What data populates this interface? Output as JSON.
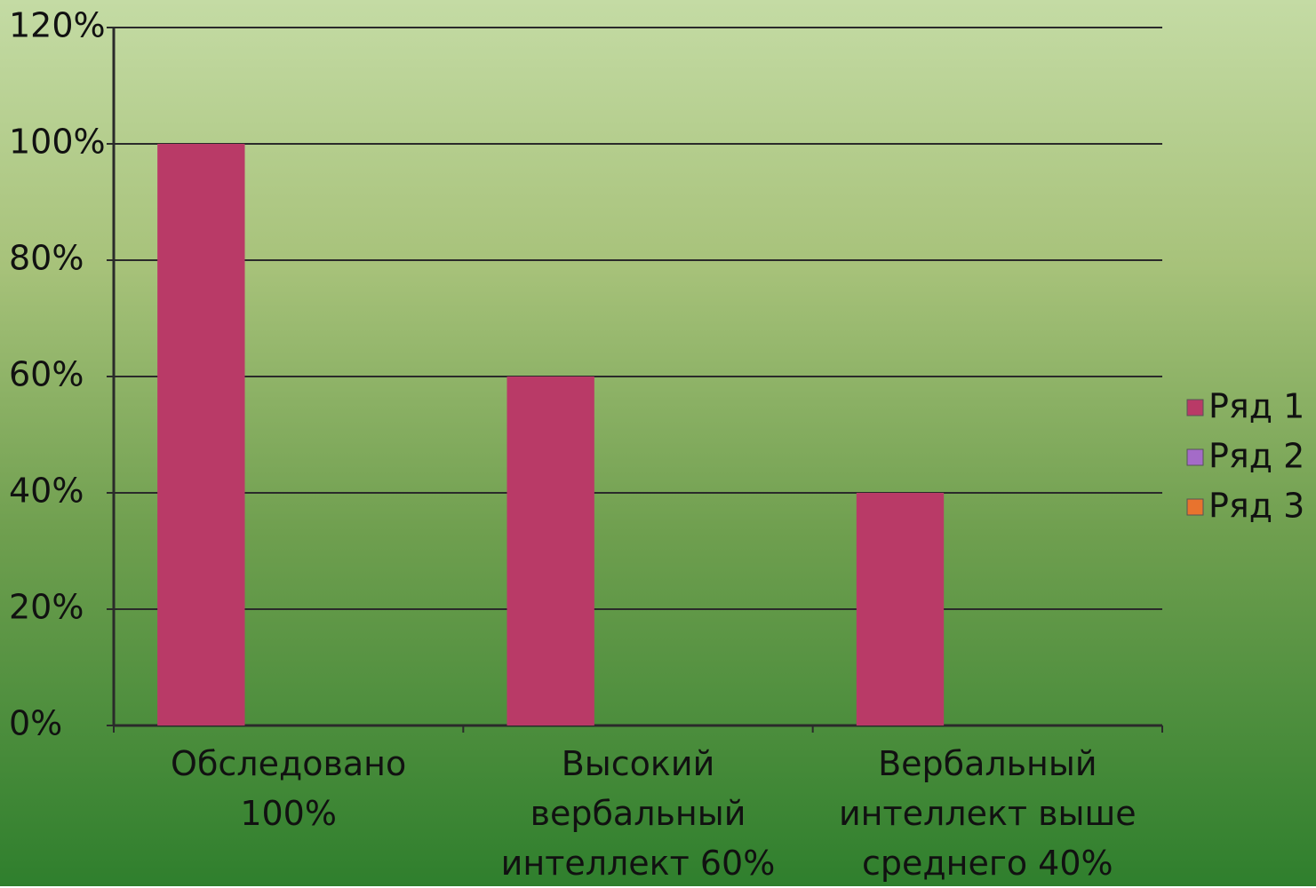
{
  "chart_data": {
    "type": "bar",
    "categories": [
      "Обследовано 100%",
      "Высокий вербальный интеллект 60%",
      "Вербальный интеллект выше среднего 40%"
    ],
    "series": [
      {
        "name": "Ряд 1",
        "color": "#b93a67",
        "values": [
          100,
          60,
          40
        ]
      },
      {
        "name": "Ряд 2",
        "color": "#a46bc8",
        "values": [
          null,
          null,
          null
        ]
      },
      {
        "name": "Ряд 3",
        "color": "#e8732e",
        "values": [
          null,
          null,
          null
        ]
      }
    ],
    "ylim": [
      0,
      120
    ],
    "yticks": [
      {
        "value": 0,
        "label": "0%"
      },
      {
        "value": 20,
        "label": "20%"
      },
      {
        "value": 40,
        "label": "40%"
      },
      {
        "value": 60,
        "label": "60%"
      },
      {
        "value": 80,
        "label": "80%"
      },
      {
        "value": 100,
        "label": "100%"
      },
      {
        "value": 120,
        "label": "120%"
      }
    ],
    "grid": true,
    "legend": "right"
  }
}
